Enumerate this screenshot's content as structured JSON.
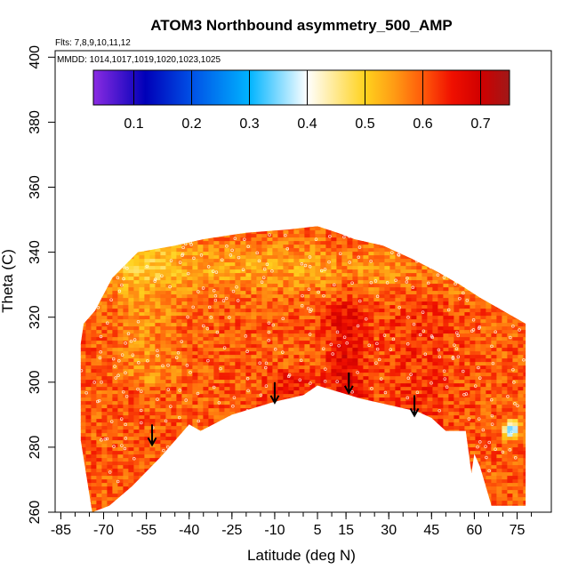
{
  "chart_data": {
    "type": "heatmap",
    "title": "ATOM3 Northbound asymmetry_500_AMP",
    "annotations": {
      "flights": "Flts: 7,8,9,10,11,12",
      "dates": "MMDD: 1014,1017,1019,1020,1023,1025"
    },
    "xlabel": "Latitude (deg N)",
    "ylabel": "Theta (C)",
    "xlim": [
      -87,
      87
    ],
    "ylim": [
      260,
      402
    ],
    "x_ticks": [
      -85,
      -70,
      -55,
      -40,
      -25,
      -10,
      5,
      15,
      30,
      45,
      60,
      75
    ],
    "x_minor_step": 5,
    "y_ticks": [
      260,
      280,
      300,
      320,
      340,
      360,
      380,
      400
    ],
    "colorbar": {
      "range": [
        0.03,
        0.75
      ],
      "ticks": [
        0.1,
        0.2,
        0.3,
        0.4,
        0.5,
        0.6,
        0.7
      ],
      "tick_labels": [
        "0.1",
        "0.2",
        "0.3",
        "0.4",
        "0.5",
        "0.6",
        "0.7"
      ],
      "stops": [
        {
          "v": 0.03,
          "c": "#8a2be2"
        },
        {
          "v": 0.12,
          "c": "#0000b8"
        },
        {
          "v": 0.2,
          "c": "#0050e6"
        },
        {
          "v": 0.3,
          "c": "#00b4ff"
        },
        {
          "v": 0.4,
          "c": "#ffffff"
        },
        {
          "v": 0.5,
          "c": "#ffd21e"
        },
        {
          "v": 0.55,
          "c": "#ff9c14"
        },
        {
          "v": 0.6,
          "c": "#ff5a0a"
        },
        {
          "v": 0.65,
          "c": "#f01000"
        },
        {
          "v": 0.7,
          "c": "#d00000"
        },
        {
          "v": 0.75,
          "c": "#a01818"
        }
      ]
    },
    "data_envelope": {
      "top": [
        [
          -78,
          312
        ],
        [
          -77,
          318
        ],
        [
          -73,
          322
        ],
        [
          -67,
          332
        ],
        [
          -58,
          340
        ],
        [
          -45,
          342
        ],
        [
          -35,
          344
        ],
        [
          -20,
          346
        ],
        [
          -5,
          347
        ],
        [
          5,
          348
        ],
        [
          12,
          346
        ],
        [
          18,
          344
        ],
        [
          28,
          342
        ],
        [
          38,
          338
        ],
        [
          47,
          334
        ],
        [
          55,
          330
        ],
        [
          62,
          326
        ],
        [
          70,
          322
        ],
        [
          78,
          318
        ]
      ],
      "bottom": [
        [
          -78,
          282
        ],
        [
          -74,
          260
        ],
        [
          -68,
          262
        ],
        [
          -60,
          268
        ],
        [
          -50,
          277
        ],
        [
          -45,
          282
        ],
        [
          -40,
          287
        ],
        [
          -36,
          285
        ],
        [
          -25,
          290
        ],
        [
          -10,
          294
        ],
        [
          0,
          296
        ],
        [
          5,
          299
        ],
        [
          20,
          295
        ],
        [
          30,
          293
        ],
        [
          40,
          291
        ],
        [
          45,
          289
        ],
        [
          50,
          285
        ],
        [
          57,
          285
        ],
        [
          59,
          272
        ],
        [
          60,
          278
        ],
        [
          62,
          274
        ],
        [
          66,
          262
        ],
        [
          70,
          262
        ],
        [
          78,
          262
        ]
      ]
    },
    "arrows": [
      [
        -53,
        287
      ],
      [
        -10,
        300
      ],
      [
        16,
        303
      ],
      [
        39,
        296
      ]
    ],
    "field_description": "Mostly 0.55-0.72; maximum (~0.72) near 10-20N below 320C; local minimum (~0.3) near 72N, 286C"
  }
}
